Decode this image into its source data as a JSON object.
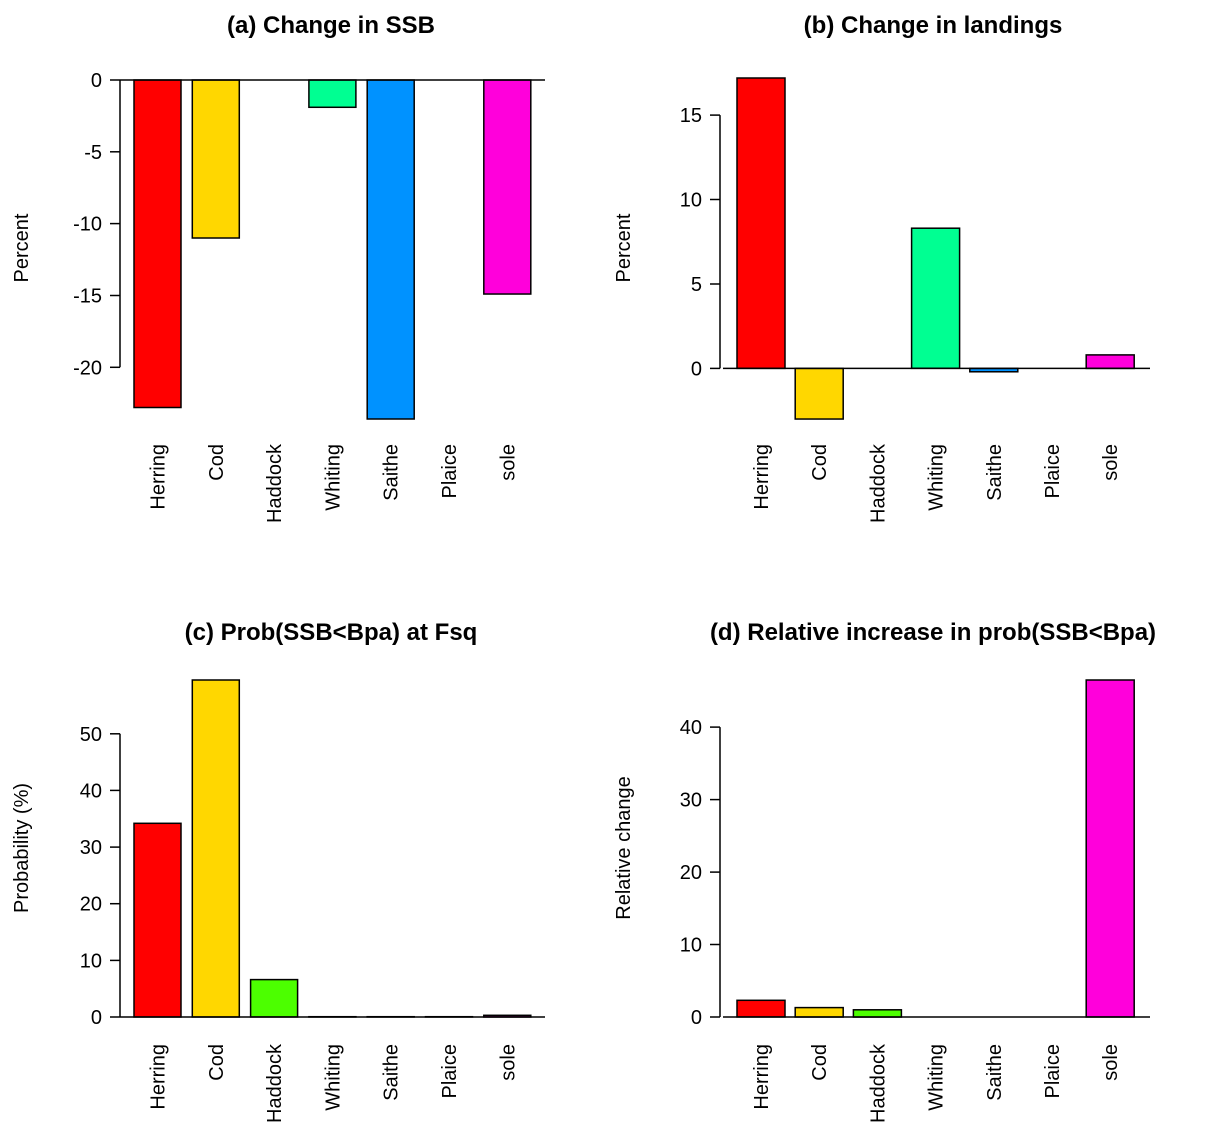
{
  "categories": [
    "Herring",
    "Cod",
    "Haddock",
    "Whiting",
    "Saithe",
    "Plaice",
    "sole"
  ],
  "colors": {
    "Herring": "#FF0000",
    "Cod": "#FFD700",
    "Haddock": "#4CFF00",
    "Whiting": "#00FF92",
    "Saithe": "#0092FF",
    "Plaice": "#4900FF",
    "sole": "#FF00DB"
  },
  "chart_data": [
    {
      "type": "bar",
      "title": "(a) Change in SSB",
      "ylabel": "Percent",
      "categories": [
        "Herring",
        "Cod",
        "Haddock",
        "Whiting",
        "Saithe",
        "Plaice",
        "sole"
      ],
      "values": [
        -22.8,
        -11.0,
        0.0,
        -1.9,
        -23.6,
        0.0,
        -14.9
      ],
      "yticks": [
        0,
        -5,
        -10,
        -15,
        -20
      ],
      "ylim": [
        -23.6,
        0
      ]
    },
    {
      "type": "bar",
      "title": "(b) Change in landings",
      "ylabel": "Percent",
      "categories": [
        "Herring",
        "Cod",
        "Haddock",
        "Whiting",
        "Saithe",
        "Plaice",
        "sole"
      ],
      "values": [
        17.2,
        -3.0,
        0.0,
        8.3,
        -0.2,
        0.0,
        0.8
      ],
      "yticks": [
        0,
        5,
        10,
        15
      ],
      "ylim": [
        -3.0,
        17.2
      ]
    },
    {
      "type": "bar",
      "title": "(c) Prob(SSB<Bpa) at Fsq",
      "ylabel": "Probability (%)",
      "categories": [
        "Herring",
        "Cod",
        "Haddock",
        "Whiting",
        "Saithe",
        "Plaice",
        "sole"
      ],
      "values": [
        34.2,
        59.5,
        6.6,
        0.05,
        0.05,
        0.05,
        0.3
      ],
      "yticks": [
        0,
        10,
        20,
        30,
        40,
        50
      ],
      "ylim": [
        0,
        59.5
      ]
    },
    {
      "type": "bar",
      "title": "(d) Relative increase in prob(SSB<Bpa)",
      "ylabel": "Relative change",
      "categories": [
        "Herring",
        "Cod",
        "Haddock",
        "Whiting",
        "Saithe",
        "Plaice",
        "sole"
      ],
      "values": [
        2.3,
        1.3,
        1.0,
        0.0,
        0.0,
        0.0,
        46.5
      ],
      "yticks": [
        0,
        10,
        20,
        30,
        40
      ],
      "ylim": [
        0,
        46.5
      ]
    }
  ]
}
